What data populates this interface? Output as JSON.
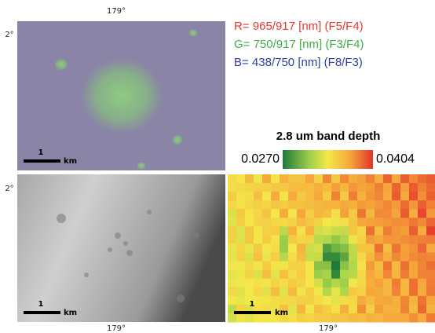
{
  "figure": {
    "top_x_label": "179°",
    "lat_labels": [
      "2°",
      "2°"
    ],
    "rgb_legend": [
      "R= 965/917 [nm] (F5/F4)",
      "G= 750/917 [nm] (F3/F4)",
      "B= 438/750 [nm] (F8/F3)"
    ],
    "colorbar": {
      "title": "2.8 um band depth",
      "min": "0.0270",
      "max": "0.0404"
    },
    "scale_bars": [
      {
        "value": "1",
        "unit": "km"
      },
      {
        "value": "1",
        "unit": "km"
      },
      {
        "value": "1",
        "unit": "km"
      }
    ],
    "bottom_x_labels": [
      "179°",
      "179°"
    ]
  }
}
